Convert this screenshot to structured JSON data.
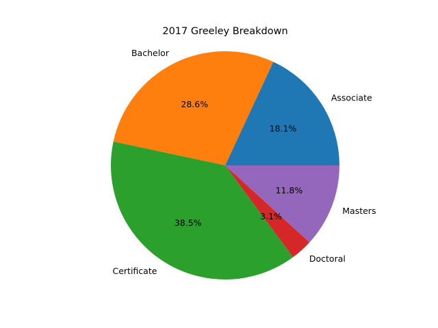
{
  "chart_data": {
    "type": "pie",
    "title": "2017 Greeley Breakdown",
    "start_angle_deg": 0,
    "direction": "counterclockwise",
    "slices": [
      {
        "label": "Associate",
        "value": 18.1,
        "pct_label": "18.1%",
        "color": "#1f77b4"
      },
      {
        "label": "Bachelor",
        "value": 28.6,
        "pct_label": "28.6%",
        "color": "#ff7f0e"
      },
      {
        "label": "Certificate",
        "value": 38.5,
        "pct_label": "38.5%",
        "color": "#2ca02c"
      },
      {
        "label": "Doctoral",
        "value": 3.1,
        "pct_label": "3.1%",
        "color": "#d62728"
      },
      {
        "label": "Masters",
        "value": 11.8,
        "pct_label": "11.8%",
        "color": "#9467bd"
      }
    ]
  }
}
